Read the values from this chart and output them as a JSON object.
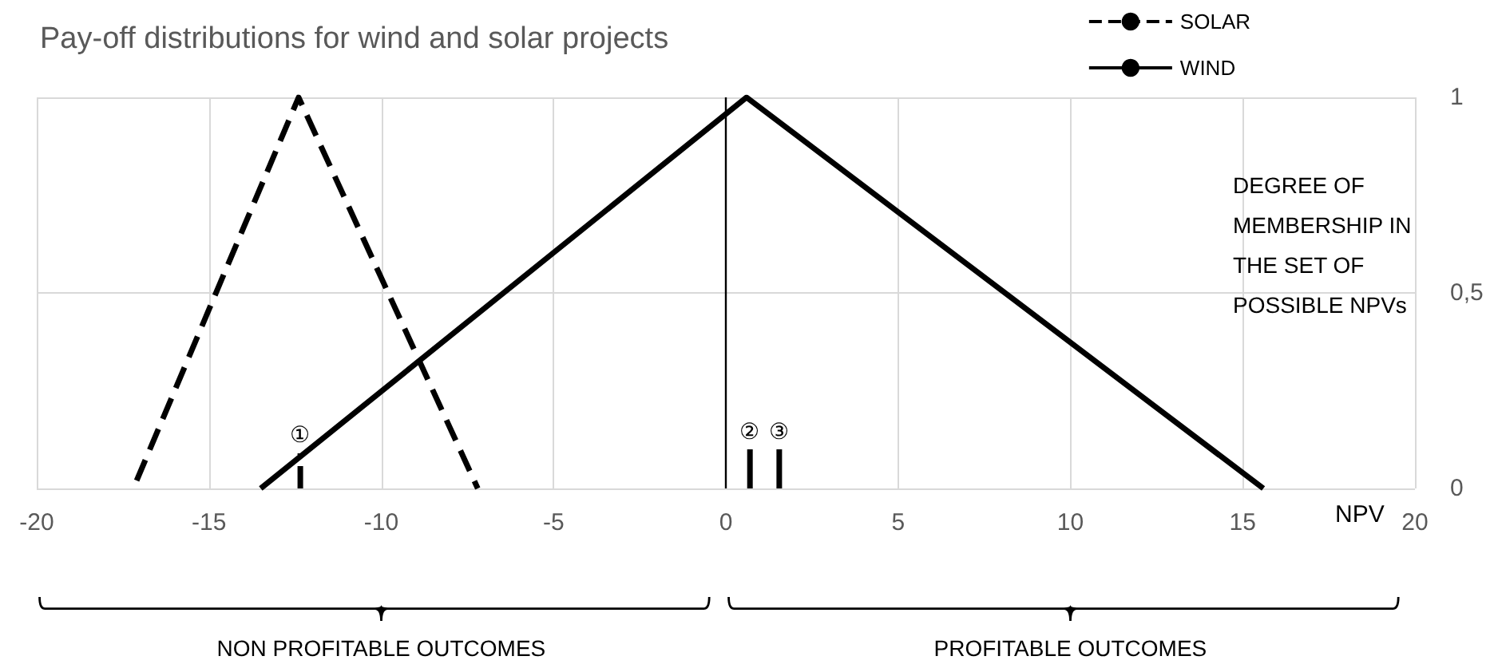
{
  "chart_data": {
    "type": "line",
    "title": "Pay-off distributions for wind and solar projects",
    "xlabel": "NPV",
    "ylabel": "DEGREE OF MEMBERSHIP IN THE SET OF POSSIBLE NPVs",
    "series": [
      {
        "name": "SOLAR",
        "color": "#000000",
        "line_style": "dashed",
        "x": [
          -17.1,
          -12.4,
          -7.2
        ],
        "values": [
          0.02,
          1,
          0
        ]
      },
      {
        "name": "WIND",
        "color": "#000000",
        "line_style": "solid",
        "x": [
          -13.5,
          0.6,
          15.6
        ],
        "values": [
          0,
          1,
          0
        ]
      },
      {
        "color": "#000000",
        "line_style": "dashed",
        "x": [
          -12.35,
          -12.35
        ],
        "values": [
          0,
          0.09
        ]
      },
      {
        "color": "#000000",
        "line_style": "solid",
        "x": [
          0.7,
          0.7
        ],
        "values": [
          0,
          0.1
        ]
      },
      {
        "color": "#000000",
        "line_style": "solid",
        "x": [
          1.55,
          1.55
        ],
        "values": [
          0,
          0.1
        ]
      }
    ],
    "xlim": [
      -20,
      20
    ],
    "xticks": [
      -20,
      -15,
      -10,
      -5,
      0,
      5,
      10,
      15,
      20
    ],
    "ylim": [
      0,
      1
    ],
    "yticks": [
      0,
      {
        "value": 0.5,
        "label": "0,5"
      },
      1
    ],
    "ref_lines": [
      {
        "axis": "x",
        "value": 0,
        "color": "#000000"
      }
    ],
    "annotations": [
      "①",
      "②",
      "③",
      "NON PROFITABLE OUTCOMES",
      "PROFITABLE OUTCOMES"
    ],
    "grid": true,
    "legend": "top right",
    "marker": "none"
  }
}
